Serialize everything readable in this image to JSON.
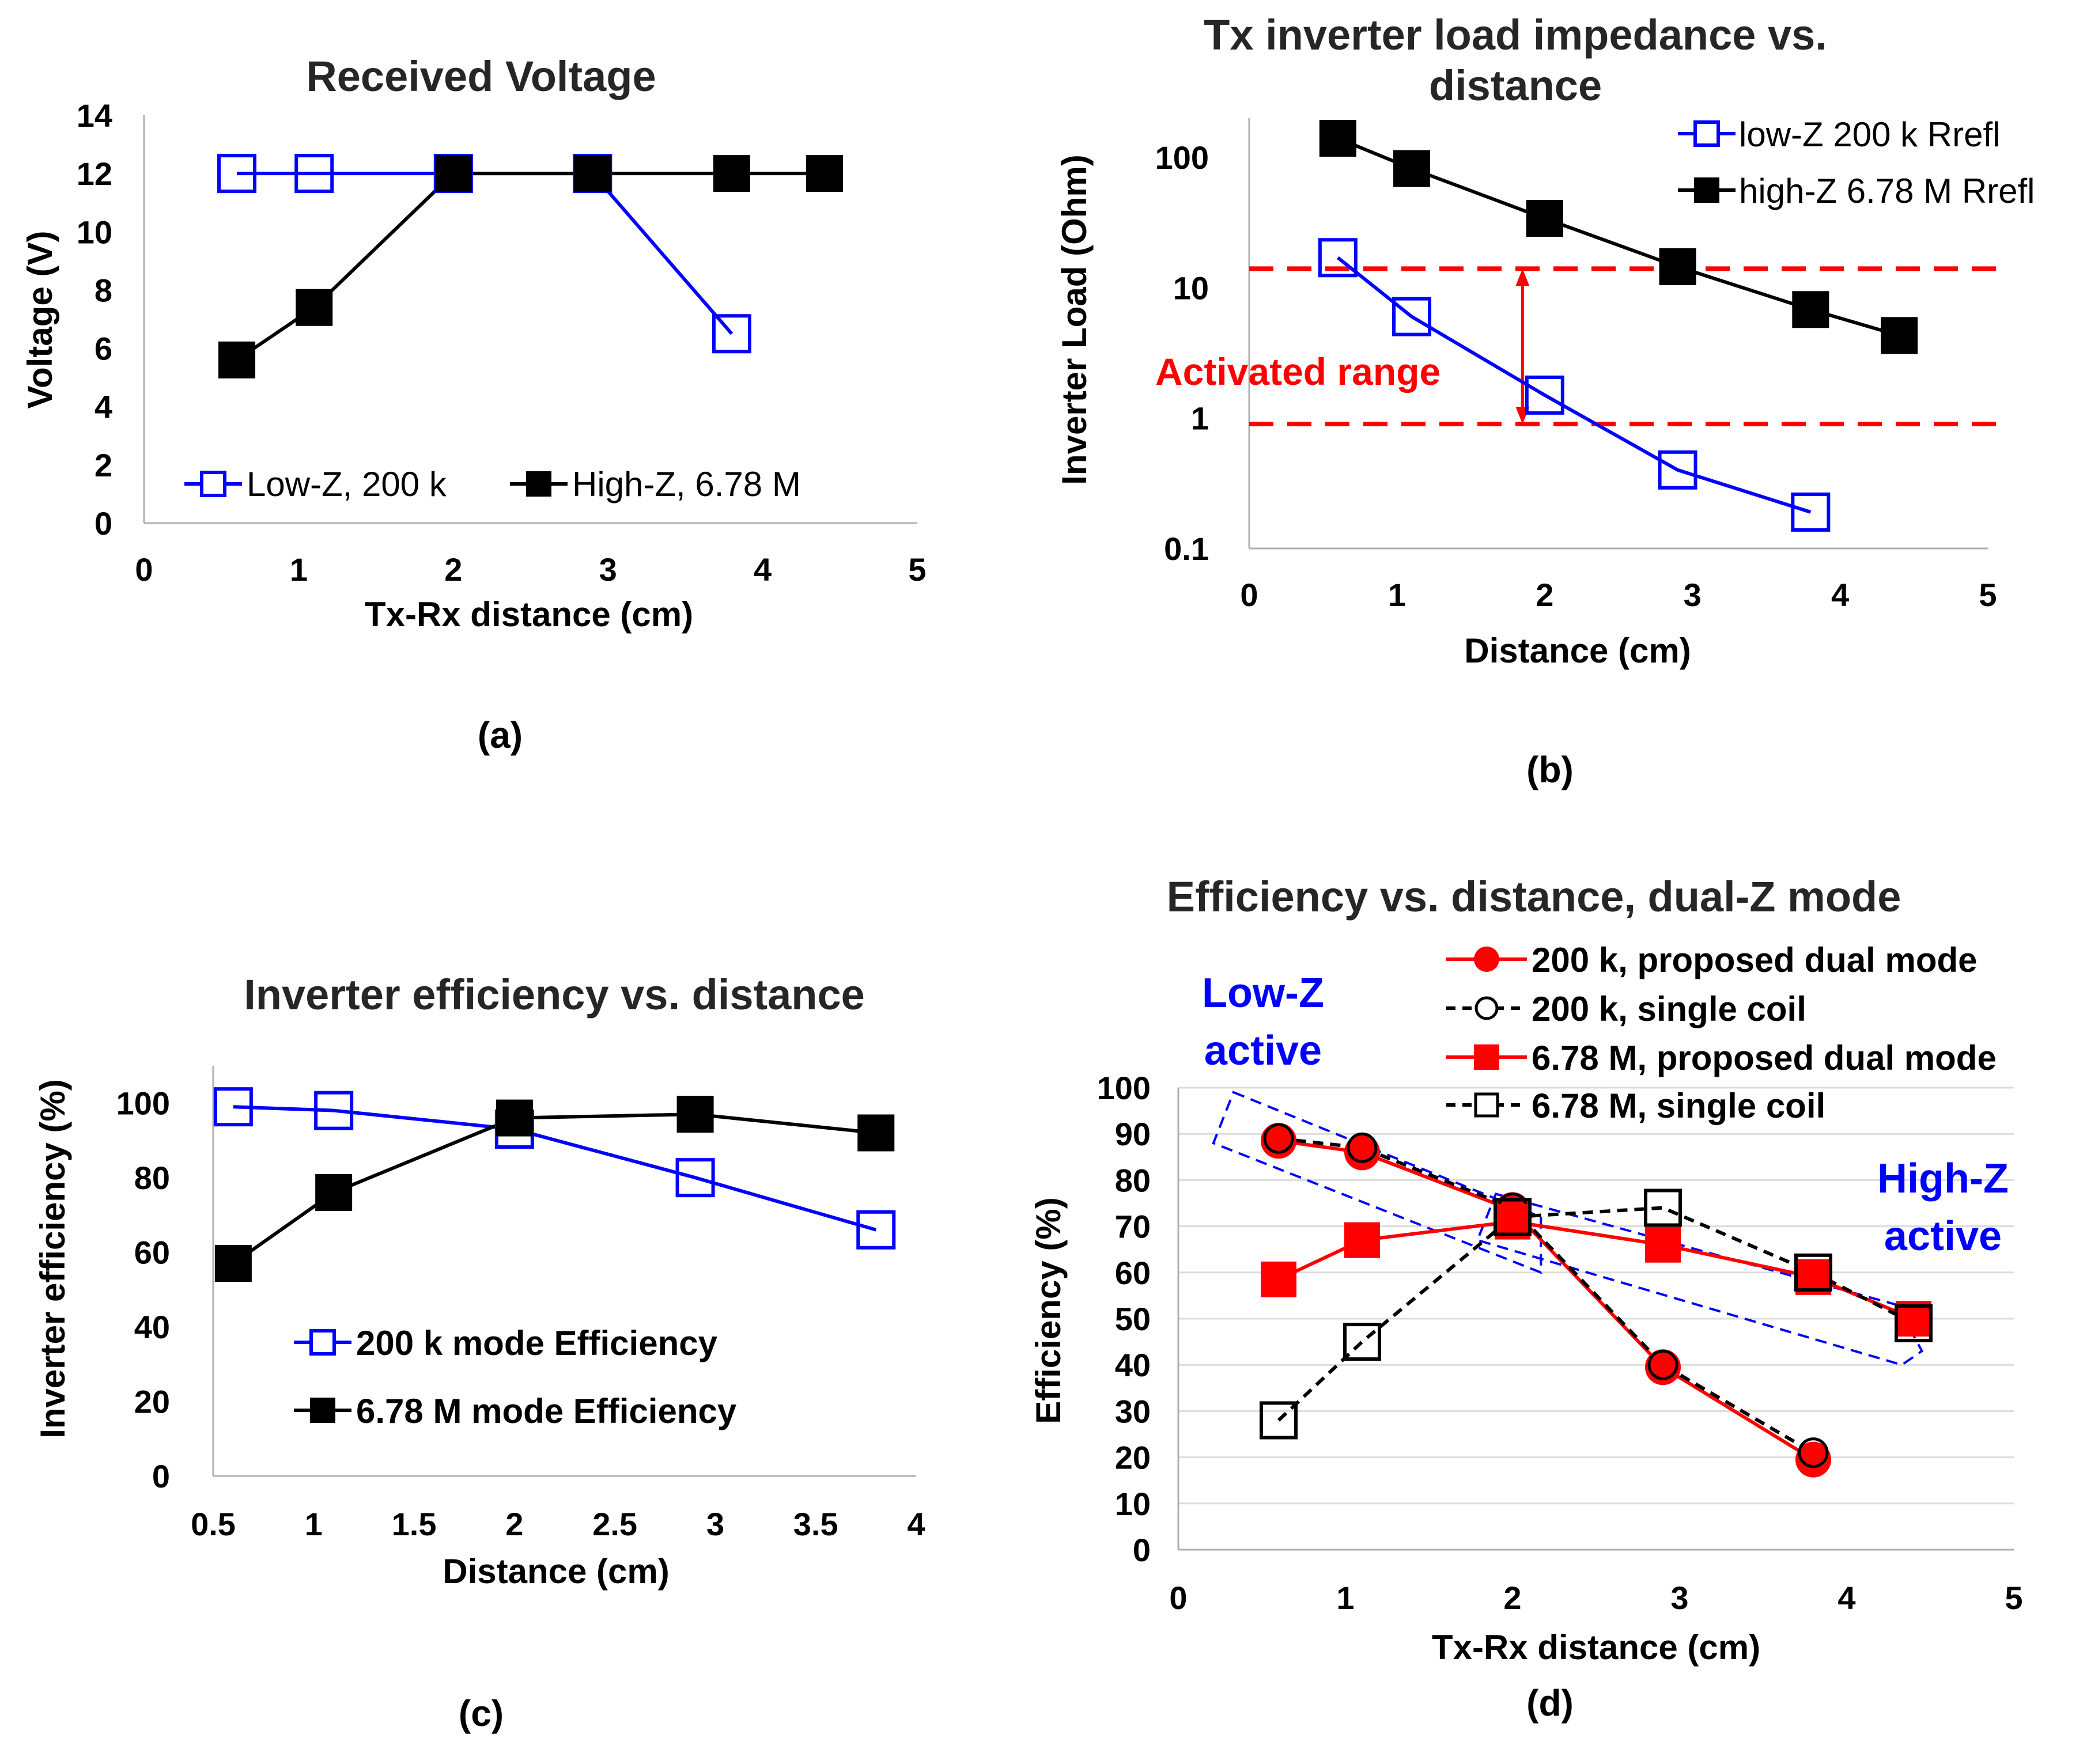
{
  "chart_data": [
    {
      "id": "a",
      "type": "line",
      "panel_label": "(a)",
      "title": "Received Voltage",
      "xlabel": "Tx-Rx distance (cm)",
      "ylabel": "Voltage (V)",
      "xlim": [
        0,
        5
      ],
      "ylim": [
        0,
        14
      ],
      "xticks": [
        0,
        1,
        2,
        3,
        4,
        5
      ],
      "yticks": [
        0,
        2,
        4,
        6,
        8,
        10,
        12,
        14
      ],
      "legend_position": "bottom-center",
      "series": [
        {
          "name": "Low-Z, 200 k",
          "color": "#0000ff",
          "marker": "open-square",
          "dash": "solid",
          "x": [
            0.6,
            1.1,
            2.0,
            2.9,
            3.8
          ],
          "y": [
            12,
            12,
            12,
            12,
            6.5
          ]
        },
        {
          "name": "High-Z, 6.78 M",
          "color": "#000000",
          "marker": "filled-square",
          "dash": "solid",
          "x": [
            0.6,
            1.1,
            2.0,
            2.9,
            3.8,
            4.4
          ],
          "y": [
            5.6,
            7.4,
            12,
            12,
            12,
            12
          ]
        }
      ]
    },
    {
      "id": "b",
      "type": "line",
      "panel_label": "(b)",
      "title": "Tx inverter load impedance vs.",
      "title_line2": "distance",
      "xlabel": "Distance (cm)",
      "ylabel": "Inverter Load (Ohm)",
      "yscale": "log",
      "xlim": [
        0,
        5
      ],
      "ylim": [
        0.1,
        200
      ],
      "xticks": [
        0,
        1,
        2,
        3,
        4,
        5
      ],
      "yticks": [
        0.1,
        1,
        10,
        100
      ],
      "ytick_labels": [
        "0.1",
        "1",
        "10",
        "100"
      ],
      "legend_position": "top-right",
      "series": [
        {
          "name": "low-Z 200 k Rrefl",
          "color": "#0000ff",
          "marker": "open-square",
          "dash": "solid",
          "x": [
            0.6,
            1.1,
            2.0,
            2.9,
            3.8
          ],
          "y": [
            17,
            6,
            1.5,
            0.4,
            0.19
          ]
        },
        {
          "name": "high-Z 6.78 M Rrefl",
          "color": "#000000",
          "marker": "filled-square",
          "dash": "solid",
          "x": [
            0.6,
            1.1,
            2.0,
            2.9,
            3.8,
            4.4
          ],
          "y": [
            140,
            82,
            34,
            14.5,
            6.8,
            4.3
          ]
        }
      ],
      "reference_lines": [
        {
          "y": 14,
          "color": "#ff0000",
          "dash": "dashed"
        },
        {
          "y": 0.9,
          "color": "#ff0000",
          "dash": "dashed"
        }
      ],
      "range_arrow": {
        "x": 1.85,
        "y_from": 14,
        "y_to": 0.9,
        "color": "#ff0000"
      },
      "annotation": {
        "text": "Activated range",
        "color": "#ff0000"
      }
    },
    {
      "id": "c",
      "type": "line",
      "panel_label": "(c)",
      "title": "Inverter efficiency vs. distance",
      "xlabel": "Distance (cm)",
      "ylabel": "Inverter efficiency (%)",
      "xlim": [
        0.5,
        4
      ],
      "ylim": [
        0,
        110
      ],
      "xticks": [
        0.5,
        1,
        1.5,
        2,
        2.5,
        3,
        3.5,
        4
      ],
      "yticks": [
        0,
        20,
        40,
        60,
        80,
        100
      ],
      "legend_position": "bottom-center",
      "series": [
        {
          "name": "200 k mode Efficiency",
          "color": "#0000ff",
          "marker": "open-square",
          "dash": "solid",
          "x": [
            0.6,
            1.1,
            2.0,
            2.9,
            3.8
          ],
          "y": [
            99,
            98,
            93,
            80,
            66
          ]
        },
        {
          "name": "6.78 M mode Efficiency",
          "color": "#000000",
          "marker": "filled-square",
          "dash": "solid",
          "x": [
            0.6,
            1.1,
            2.0,
            2.9,
            3.8
          ],
          "y": [
            57,
            76,
            96,
            97,
            92
          ]
        }
      ]
    },
    {
      "id": "d",
      "type": "line",
      "panel_label": "(d)",
      "title": "Efficiency vs. distance, dual-Z mode",
      "xlabel": "Tx-Rx distance (cm)",
      "ylabel": "Efficiency (%)",
      "xlim": [
        0,
        5
      ],
      "ylim": [
        0,
        100
      ],
      "xticks": [
        0,
        1,
        2,
        3,
        4,
        5
      ],
      "yticks": [
        0,
        10,
        20,
        30,
        40,
        50,
        60,
        70,
        80,
        90,
        100
      ],
      "legend_position": "top-right",
      "series": [
        {
          "name": "200 k, proposed dual mode",
          "color": "#ff0000",
          "marker": "filled-circle",
          "dash": "solid",
          "x": [
            0.6,
            1.1,
            2.0,
            2.9,
            3.8
          ],
          "y": [
            88.5,
            86,
            73.5,
            39.5,
            19.5
          ]
        },
        {
          "name": "200 k, single coil",
          "color": "#000000",
          "marker": "open-circle",
          "dash": "dashed",
          "x": [
            0.6,
            1.1,
            2.0,
            2.9,
            3.8
          ],
          "y": [
            89,
            87,
            74,
            40,
            21
          ]
        },
        {
          "name": "6.78 M, proposed dual mode",
          "color": "#ff0000",
          "marker": "filled-square",
          "dash": "solid",
          "x": [
            0.6,
            1.1,
            2.0,
            2.9,
            3.8,
            4.4
          ],
          "y": [
            58.5,
            67,
            71,
            66,
            59,
            50
          ]
        },
        {
          "name": "6.78 M, single coil",
          "color": "#000000",
          "marker": "open-square",
          "dash": "dashed",
          "x": [
            0.6,
            1.1,
            2.0,
            2.9,
            3.8,
            4.4
          ],
          "y": [
            28,
            45,
            72,
            74,
            60,
            49
          ]
        }
      ],
      "annotations": [
        {
          "text": "Low-Z",
          "text_line2": "active",
          "color": "#0000ff"
        },
        {
          "text": "High-Z",
          "text_line2": "active",
          "color": "#0000ff"
        }
      ],
      "highlight_regions": [
        {
          "name": "low-z-region",
          "color": "#0000ff",
          "corners": [
            [
              0.33,
              99
            ],
            [
              2.17,
              72
            ],
            [
              2.17,
              60
            ],
            [
              0.21,
              88
            ]
          ]
        },
        {
          "name": "high-z-region",
          "color": "#0000ff",
          "corners": [
            [
              1.9,
              77
            ],
            [
              4.3,
              53
            ],
            [
              4.45,
              43
            ],
            [
              4.33,
              40
            ],
            [
              1.79,
              67
            ]
          ]
        }
      ]
    }
  ]
}
